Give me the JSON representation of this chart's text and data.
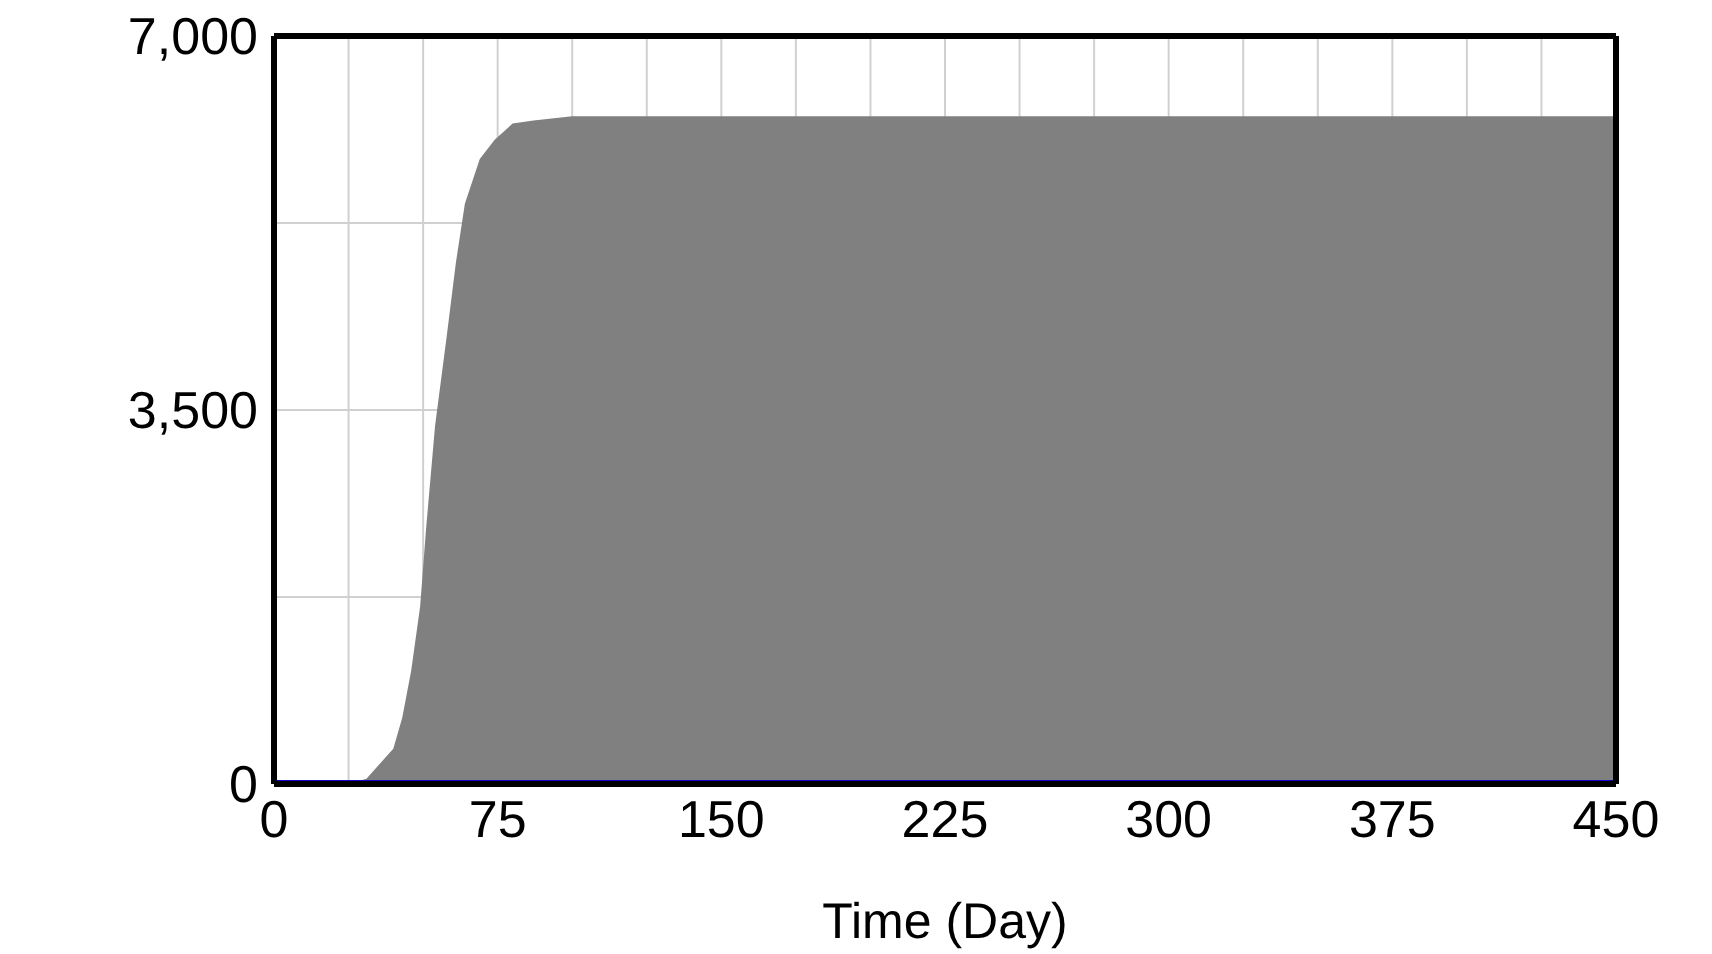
{
  "chart_data": {
    "type": "area",
    "xlabel": "Time (Day)",
    "xlim": [
      0,
      450
    ],
    "xticks": [
      0,
      {
        "value": 25,
        "label": null
      },
      {
        "value": 50,
        "label": null
      },
      75,
      {
        "value": 100,
        "label": null
      },
      {
        "value": 125,
        "label": null
      },
      150,
      {
        "value": 175,
        "label": null
      },
      {
        "value": 200,
        "label": null
      },
      225,
      {
        "value": 250,
        "label": null
      },
      {
        "value": 275,
        "label": null
      },
      300,
      {
        "value": 325,
        "label": null
      },
      {
        "value": 350,
        "label": null
      },
      375,
      {
        "value": 400,
        "label": null
      },
      {
        "value": 425,
        "label": null
      },
      450
    ],
    "ylim": [
      0,
      7000
    ],
    "yticks": [
      0,
      {
        "value": 1750,
        "label": null
      },
      {
        "value": 3500,
        "label": "3,500"
      },
      {
        "value": 5250,
        "label": null
      },
      {
        "value": 7000,
        "label": "7,000"
      }
    ],
    "grid": true,
    "marker": "none",
    "line_style": "solid",
    "series": [
      {
        "color": "#808080",
        "x": [
          0,
          25,
          31,
          40,
          43,
          46,
          49,
          51,
          54,
          58,
          61,
          64,
          69,
          74,
          80,
          87,
          100,
          450
        ],
        "values": [
          0,
          0,
          50,
          330,
          620,
          1060,
          1660,
          2390,
          3350,
          4210,
          4880,
          5430,
          5850,
          6030,
          6180,
          6210,
          6250,
          6250
        ]
      },
      {
        "type": "line",
        "color": "#1400d0",
        "x": [
          0,
          450
        ],
        "values": [
          0,
          0
        ]
      }
    ]
  }
}
